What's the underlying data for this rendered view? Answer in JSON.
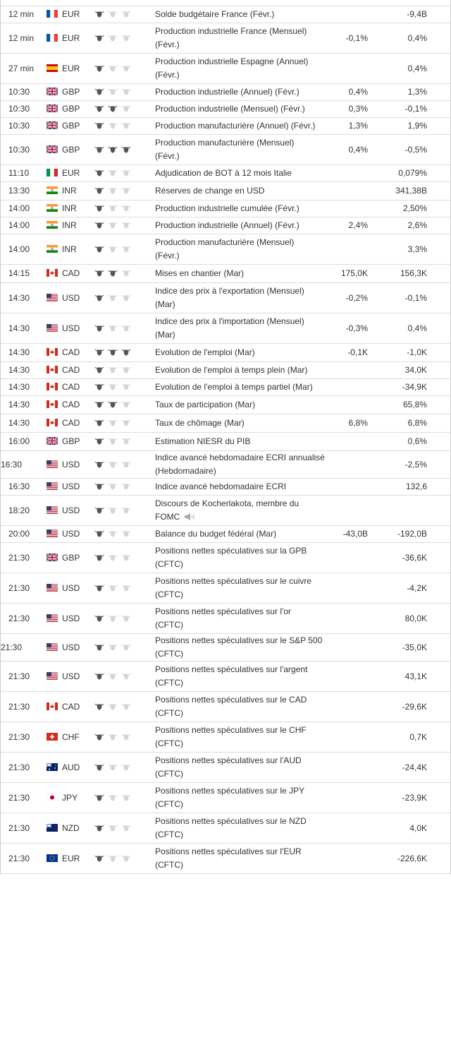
{
  "rows": [
    {
      "time": "12 min",
      "currency": "EUR",
      "importance": 1,
      "event": "Solde budgétaire France (Févr.)",
      "forecast": null,
      "previous": "-9,4B"
    },
    {
      "time": "12 min",
      "currency": "EUR",
      "importance": 1,
      "event": "Production industrielle France (Mensuel) (Févr.)",
      "forecast": "-0,1%",
      "previous": "0,4%"
    },
    {
      "time": "27 min",
      "currency": "EUR",
      "importance": 1,
      "event": "Production industrielle Espagne (Annuel) (Févr.)",
      "forecast": null,
      "previous": "0,4%"
    },
    {
      "time": "10:30",
      "currency": "GBP",
      "importance": 1,
      "event": "Production industrielle (Annuel) (Févr.)",
      "forecast": "0,4%",
      "previous": "1,3%"
    },
    {
      "time": "10:30",
      "currency": "GBP",
      "importance": 2,
      "event": "Production industrielle (Mensuel) (Févr.)",
      "forecast": "0,3%",
      "previous": "-0,1%"
    },
    {
      "time": "10:30",
      "currency": "GBP",
      "importance": 1,
      "event": "Production manufacturière (Annuel) (Févr.)",
      "forecast": "1,3%",
      "previous": "1,9%"
    },
    {
      "time": "10:30",
      "currency": "GBP",
      "importance": 3,
      "event": "Production manufacturière (Mensuel) (Févr.)",
      "forecast": "0,4%",
      "previous": "-0,5%"
    },
    {
      "time": "11:10",
      "currency": "EUR",
      "importance": 1,
      "event": "Adjudication de BOT à 12 mois Italie",
      "forecast": null,
      "previous": "0,079%"
    },
    {
      "time": "13:30",
      "currency": "INR",
      "importance": 1,
      "event": "Réserves de change en USD",
      "forecast": null,
      "previous": "341,38B"
    },
    {
      "time": "14:00",
      "currency": "INR",
      "importance": 1,
      "event": "Production industrielle cumulée (Févr.)",
      "forecast": null,
      "previous": "2,50%"
    },
    {
      "time": "14:00",
      "currency": "INR",
      "importance": 1,
      "event": "Production industrielle (Annuel) (Févr.)",
      "forecast": "2,4%",
      "previous": "2,6%"
    },
    {
      "time": "14:00",
      "currency": "INR",
      "importance": 1,
      "event": "Production manufacturière (Mensuel) (Févr.)",
      "forecast": null,
      "previous": "3,3%"
    },
    {
      "time": "14:15",
      "currency": "CAD",
      "importance": 2,
      "event": "Mises en chantier (Mar)",
      "forecast": "175,0K",
      "previous": "156,3K"
    },
    {
      "time": "14:30",
      "currency": "USD",
      "importance": 1,
      "event": "Indice des prix à l'exportation (Mensuel) (Mar)",
      "forecast": "-0,2%",
      "previous": "-0,1%"
    },
    {
      "time": "14:30",
      "currency": "USD",
      "importance": 1,
      "event": "Indice des prix à l'importation (Mensuel) (Mar)",
      "forecast": "-0,3%",
      "previous": "0,4%"
    },
    {
      "time": "14:30",
      "currency": "CAD",
      "importance": 3,
      "event": "Evolution de l'emploi (Mar)",
      "forecast": "-0,1K",
      "previous": "-1,0K"
    },
    {
      "time": "14:30",
      "currency": "CAD",
      "importance": 1,
      "event": "Evolution de l'emploi à temps plein (Mar)",
      "forecast": null,
      "previous": "34,0K"
    },
    {
      "time": "14:30",
      "currency": "CAD",
      "importance": 1,
      "event": "Evolution de l'emploi à temps partiel (Mar)",
      "forecast": null,
      "previous": "-34,9K"
    },
    {
      "time": "14:30",
      "currency": "CAD",
      "importance": 2,
      "event": "Taux de participation (Mar)",
      "forecast": null,
      "previous": "65,8%"
    },
    {
      "time": "14:30",
      "currency": "CAD",
      "importance": 1,
      "event": "Taux de chômage (Mar)",
      "forecast": "6,8%",
      "previous": "6,8%"
    },
    {
      "time": "16:00",
      "currency": "GBP",
      "importance": 1,
      "event": "Estimation NIESR du PIB",
      "forecast": null,
      "previous": "0,6%"
    },
    {
      "time": "16:30",
      "currency": "USD",
      "importance": 1,
      "event": "Indice avancé hebdomadaire ECRI annualisé (Hebdomadaire)",
      "forecast": null,
      "previous": "-2,5%"
    },
    {
      "time": "16:30",
      "currency": "USD",
      "importance": 1,
      "event": "Indice avancé hebdomadaire ECRI",
      "forecast": null,
      "previous": "132,6"
    },
    {
      "time": "18:20",
      "currency": "USD",
      "importance": 1,
      "event": "Discours de Kocherlakota, membre du FOMC",
      "forecast": null,
      "previous": null,
      "audio": true
    },
    {
      "time": "20:00",
      "currency": "USD",
      "importance": 1,
      "event": "Balance du budget fédéral (Mar)",
      "forecast": "-43,0B",
      "previous": "-192,0B"
    },
    {
      "time": "21:30",
      "currency": "GBP",
      "importance": 1,
      "event": "Positions nettes spéculatives sur la GPB (CFTC)",
      "forecast": null,
      "previous": "-36,6K"
    },
    {
      "time": "21:30",
      "currency": "USD",
      "importance": 1,
      "event": "Positions nettes spéculatives sur le cuivre (CFTC)",
      "forecast": null,
      "previous": "-4,2K"
    },
    {
      "time": "21:30",
      "currency": "USD",
      "importance": 1,
      "event": "Positions nettes spéculatives sur l'or (CFTC)",
      "forecast": null,
      "previous": "80,0K"
    },
    {
      "time": "21:30",
      "currency": "USD",
      "importance": 1,
      "event": "Positions nettes spéculatives sur le S&P 500 (CFTC)",
      "forecast": null,
      "previous": "-35,0K"
    },
    {
      "time": "21:30",
      "currency": "USD",
      "importance": 1,
      "event": "Positions nettes spéculatives sur l'argent (CFTC)",
      "forecast": null,
      "previous": "43,1K"
    },
    {
      "time": "21:30",
      "currency": "CAD",
      "importance": 1,
      "event": "Positions nettes spéculatives sur le CAD (CFTC)",
      "forecast": null,
      "previous": "-29,6K"
    },
    {
      "time": "21:30",
      "currency": "CHF",
      "importance": 1,
      "event": "Positions nettes spéculatives sur le CHF (CFTC)",
      "forecast": null,
      "previous": "0,7K"
    },
    {
      "time": "21:30",
      "currency": "AUD",
      "importance": 1,
      "event": "Positions nettes spéculatives sur l'AUD (CFTC)",
      "forecast": null,
      "previous": "-24,4K"
    },
    {
      "time": "21:30",
      "currency": "JPY",
      "importance": 1,
      "event": "Positions nettes spéculatives sur le JPY (CFTC)",
      "forecast": null,
      "previous": "-23,9K"
    },
    {
      "time": "21:30",
      "currency": "NZD",
      "importance": 1,
      "event": "Positions nettes spéculatives sur le NZD (CFTC)",
      "forecast": null,
      "previous": "4,0K"
    },
    {
      "time": "21:30",
      "currency": "EUR",
      "importance": 1,
      "event": "Positions nettes spéculatives sur l'EUR (CFTC)",
      "forecast": null,
      "previous": "-226,6K"
    }
  ]
}
